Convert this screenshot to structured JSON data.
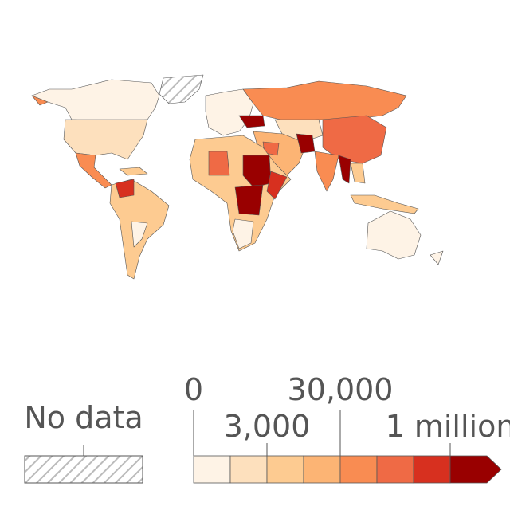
{
  "legend": {
    "no_data": "No data",
    "ticks": [
      "0",
      "3,000",
      "30,000",
      "1 million"
    ],
    "colors": [
      "#fef3e6",
      "#fde0bd",
      "#fdcb91",
      "#fcb474",
      "#f98c52",
      "#ef6a45",
      "#d7301f",
      "#990000"
    ]
  }
}
